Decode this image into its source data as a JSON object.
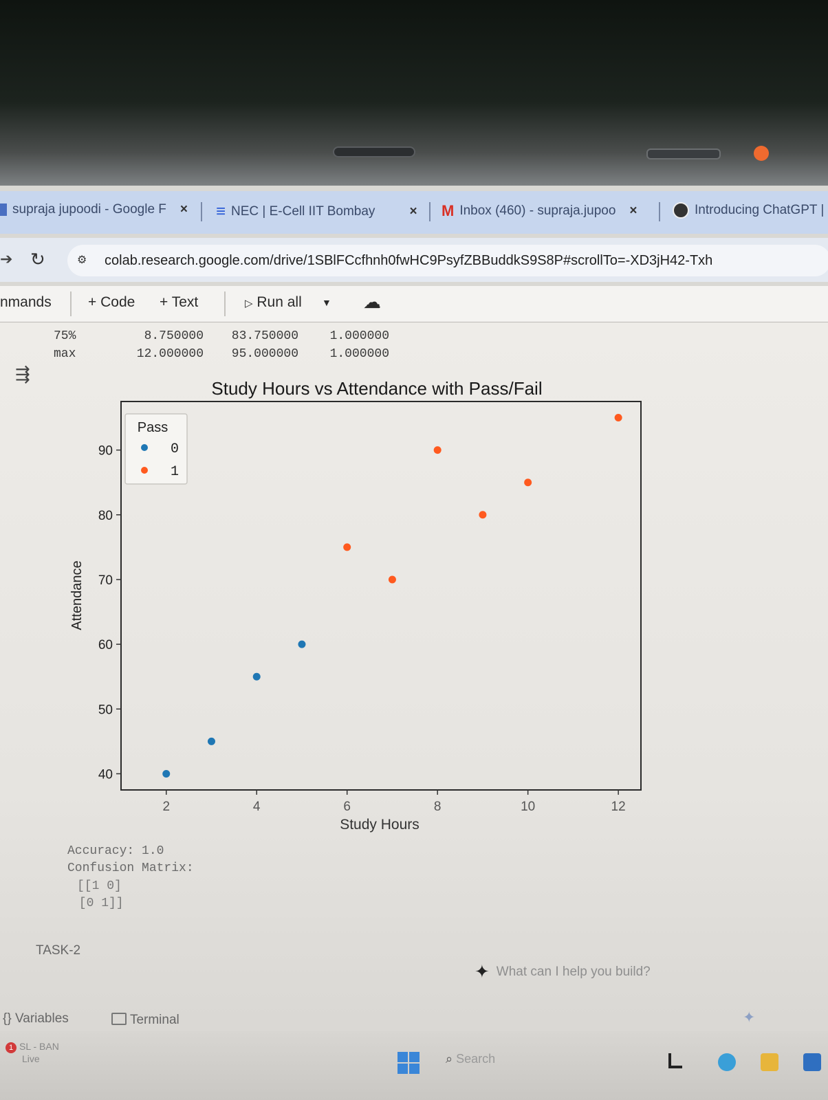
{
  "browser": {
    "tabs": [
      {
        "label": "supraja jupoodi - Google F",
        "icon": "doc-icon",
        "close": "×"
      },
      {
        "label": "NEC | E-Cell IIT Bombay",
        "icon": "ecell-icon",
        "close": "×"
      },
      {
        "label": "Inbox (460) - supraja.jupoo",
        "icon": "gmail-icon",
        "close": "×"
      },
      {
        "label": "Introducing ChatGPT |",
        "icon": "chatgpt-icon"
      }
    ],
    "url": "colab.research.google.com/drive/1SBlFCcfhnh0fwHC9PsyfZBBuddkS9S8P#scrollTo=-XD3jH42-Txh"
  },
  "toolbar": {
    "commands_label": "nmands",
    "add_code": "+ Code",
    "add_text": "+ Text",
    "run_all": "Run all",
    "run_icon": "▷",
    "dropdown_icon": "▼"
  },
  "stats_table": {
    "rows": [
      {
        "label": "75%",
        "values": [
          "8.750000",
          "83.750000",
          "1.000000"
        ]
      },
      {
        "label": "max",
        "values": [
          "12.000000",
          "95.000000",
          "1.000000"
        ]
      }
    ]
  },
  "chart_data": {
    "type": "scatter",
    "title": "Study Hours vs Attendance with Pass/Fail",
    "xlabel": "Study Hours",
    "ylabel": "Attendance",
    "xlim": [
      1.0,
      12.5
    ],
    "ylim": [
      37.5,
      97.5
    ],
    "xticks": [
      2,
      4,
      6,
      8,
      10,
      12
    ],
    "yticks": [
      40,
      50,
      60,
      70,
      80,
      90
    ],
    "legend": {
      "title": "Pass",
      "placement": "top-left"
    },
    "series": [
      {
        "name": "0",
        "color": "#1f77b4",
        "points": [
          [
            2,
            40
          ],
          [
            3,
            45
          ],
          [
            4,
            55
          ],
          [
            5,
            60
          ]
        ]
      },
      {
        "name": "1",
        "color": "#ff5a1f",
        "points": [
          [
            6,
            75
          ],
          [
            7,
            70
          ],
          [
            8,
            90
          ],
          [
            9,
            80
          ],
          [
            10,
            85
          ],
          [
            12,
            95
          ]
        ]
      }
    ]
  },
  "results": {
    "accuracy": "Accuracy: 1.0",
    "cm_title": "Confusion Matrix:",
    "cm_row1": "[[1 0]",
    "cm_row2": " [0 1]]"
  },
  "notebook": {
    "next_section": "TASK-2",
    "gemini_prompt": "What can I help you build?"
  },
  "bottom": {
    "variables": "Variables",
    "terminal": "Terminal"
  },
  "taskbar": {
    "alert_app": "SL - BAN",
    "alert_sub": "Live",
    "alert_count": "1",
    "search": "Search"
  }
}
